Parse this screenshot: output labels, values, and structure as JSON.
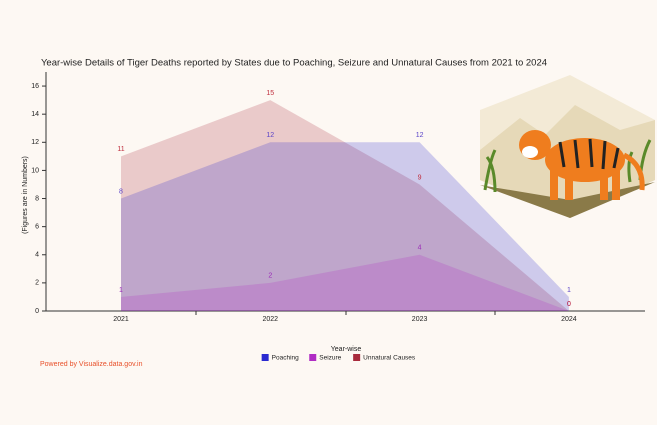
{
  "chart_data": {
    "type": "area",
    "title": "Year-wise Details of Tiger Deaths reported by States due to Poaching, Seizure and Unnatural Causes from 2021 to 2024",
    "x_label": "Year-wise",
    "y_label": "(Figures are in Numbers)",
    "categories": [
      "2021",
      "2022",
      "2023",
      "2024"
    ],
    "series": [
      {
        "name": "Poaching",
        "color": "#2a2ad0",
        "label_color": "#5b44c8",
        "values": [
          8,
          12,
          12,
          1
        ]
      },
      {
        "name": "Seizure",
        "color": "#b02cc4",
        "label_color": "#9b2cb8",
        "values": [
          1,
          2,
          4,
          0
        ]
      },
      {
        "name": "Unnatural Causes",
        "color": "#a82a3c",
        "label_color": "#c0303f",
        "values": [
          11,
          15,
          9,
          0
        ]
      }
    ],
    "ylim": [
      0,
      17
    ],
    "yticks": [
      0,
      2,
      4,
      6,
      8,
      10,
      12,
      14,
      16
    ],
    "source": "Powered by Visualize.data.gov.in"
  }
}
